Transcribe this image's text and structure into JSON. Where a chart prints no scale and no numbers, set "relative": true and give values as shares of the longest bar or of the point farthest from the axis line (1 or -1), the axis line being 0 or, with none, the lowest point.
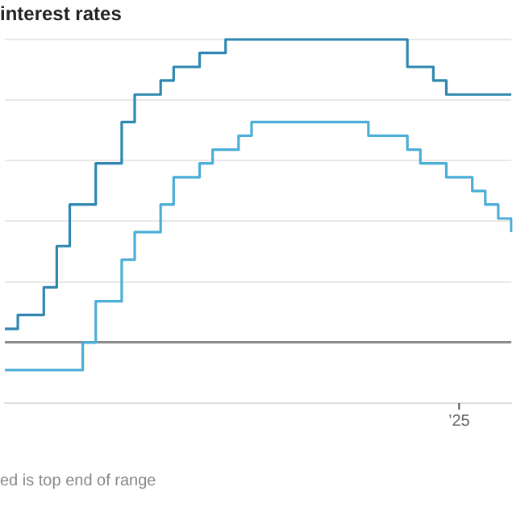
{
  "chart_data": {
    "type": "step",
    "title": "interest rates",
    "relative": true,
    "grid": "y",
    "line_style": "solid",
    "marker": "none",
    "categories": [
      null,
      null,
      null,
      null,
      null,
      null,
      null,
      null,
      null,
      null,
      null,
      null,
      null,
      null,
      null,
      null,
      null,
      null,
      null,
      null,
      null,
      null,
      null,
      null,
      null,
      null,
      null,
      null,
      null,
      null,
      null,
      null,
      null,
      null,
      null,
      null,
      null,
      null,
      null,
      null
    ],
    "series": [
      {
        "color": "#2f87b0",
        "values": [
          0.045,
          0.091,
          0.091,
          0.182,
          0.318,
          0.455,
          0.455,
          0.591,
          0.591,
          0.727,
          0.818,
          0.818,
          0.864,
          0.909,
          0.909,
          0.955,
          0.955,
          1,
          1,
          1,
          1,
          1,
          1,
          1,
          1,
          1,
          1,
          1,
          1,
          1,
          1,
          0.909,
          0.909,
          0.864,
          0.818,
          0.818,
          0.818,
          0.818,
          0.818,
          0.818
        ]
      },
      {
        "color": "#4aaed8",
        "values": [
          -0.091,
          -0.091,
          -0.091,
          -0.091,
          -0.091,
          -0.091,
          0,
          0.136,
          0.136,
          0.273,
          0.364,
          0.364,
          0.455,
          0.545,
          0.545,
          0.591,
          0.636,
          0.636,
          0.682,
          0.727,
          0.727,
          0.727,
          0.727,
          0.727,
          0.727,
          0.727,
          0.727,
          0.727,
          0.682,
          0.682,
          0.682,
          0.636,
          0.591,
          0.591,
          0.545,
          0.545,
          0.5,
          0.455,
          0.409,
          0.364
        ]
      }
    ],
    "annotations": [
      "’25",
      "ed is top end of range"
    ]
  }
}
